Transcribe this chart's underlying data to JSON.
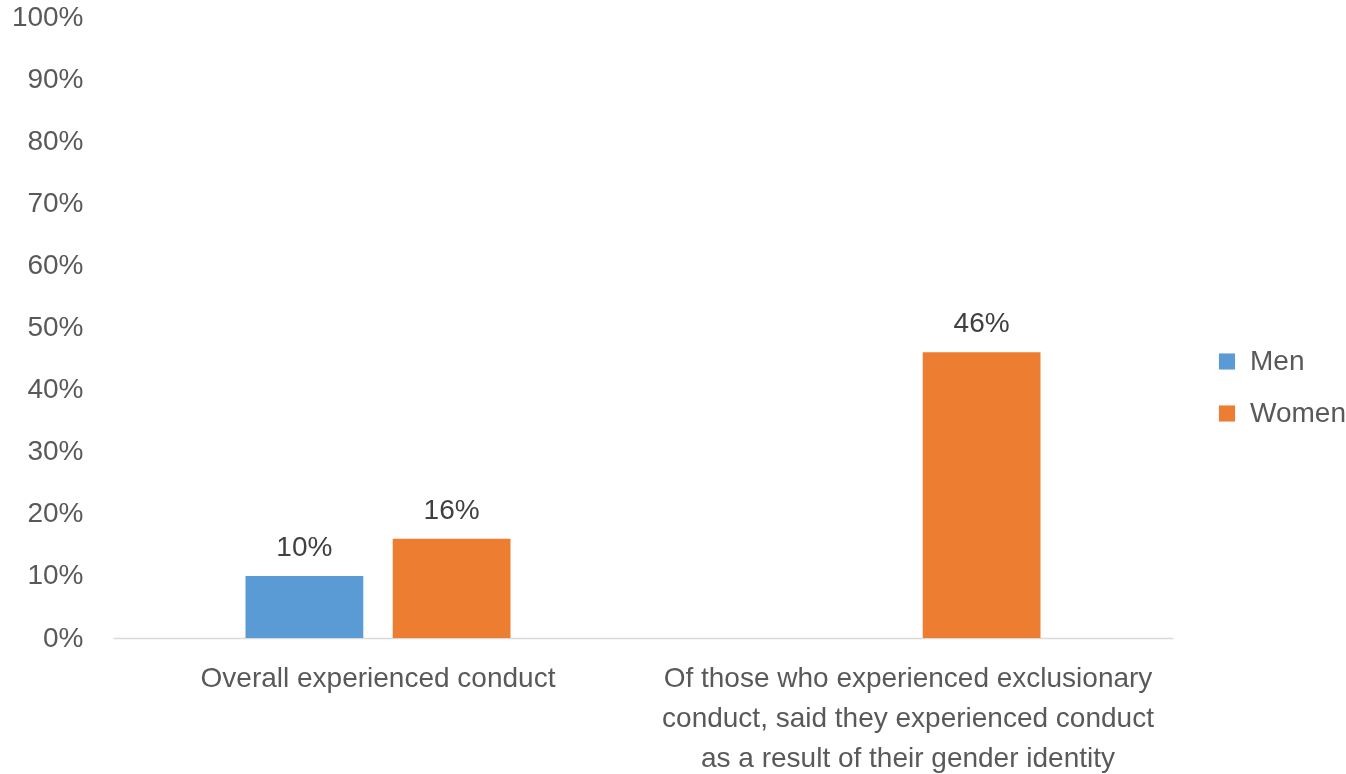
{
  "chart_data": {
    "type": "bar",
    "categories": [
      "Overall experienced conduct",
      "Of those who experienced exclusionary conduct, said they experienced conduct as a result of their gender identity"
    ],
    "series": [
      {
        "name": "Men",
        "color": "#5b9bd5",
        "values": [
          10,
          null
        ],
        "value_labels": [
          "10%",
          null
        ]
      },
      {
        "name": "Women",
        "color": "#ed7d31",
        "values": [
          16,
          46
        ],
        "value_labels": [
          "16%",
          "46%"
        ]
      }
    ],
    "ylim": [
      0,
      100
    ],
    "yticks": [
      {
        "value": 0,
        "label": "0%"
      },
      {
        "value": 10,
        "label": "10%"
      },
      {
        "value": 20,
        "label": "20%"
      },
      {
        "value": 30,
        "label": "30%"
      },
      {
        "value": 40,
        "label": "40%"
      },
      {
        "value": 50,
        "label": "50%"
      },
      {
        "value": 60,
        "label": "60%"
      },
      {
        "value": 70,
        "label": "70%"
      },
      {
        "value": 80,
        "label": "80%"
      },
      {
        "value": 90,
        "label": "90%"
      },
      {
        "value": 100,
        "label": "100%"
      }
    ],
    "legend": "right"
  }
}
